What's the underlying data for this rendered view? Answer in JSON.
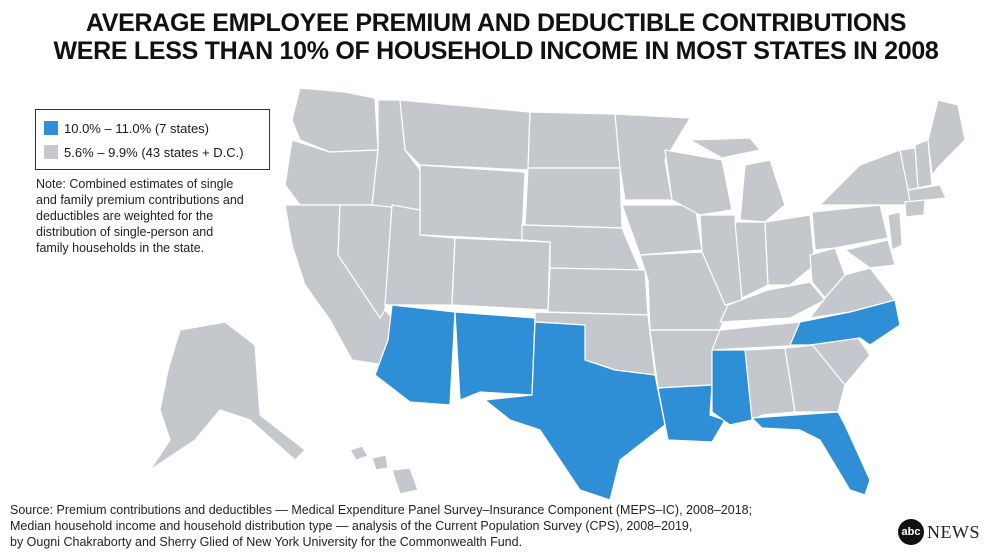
{
  "title": {
    "line1": "AVERAGE EMPLOYEE PREMIUM AND DEDUCTIBLE CONTRIBUTIONS",
    "line2": "WERE LESS THAN 10% OF HOUSEHOLD INCOME IN MOST STATES IN 2008"
  },
  "legend": {
    "items": [
      {
        "label": "10.0% – 11.0% (7 states)",
        "color": "#2e8fd6"
      },
      {
        "label": "5.6% – 9.9% (43 states + D.C.)",
        "color": "#c4c8cc"
      }
    ]
  },
  "note": "Note: Combined estimates of single and family premium contributions and deductibles are weighted for the distribution of single-person and family households in the state.",
  "highlighted_states": [
    "Arizona",
    "New Mexico",
    "Texas",
    "Louisiana",
    "Mississippi",
    "Florida",
    "North Carolina"
  ],
  "colors": {
    "highlight": "#2e8fd6",
    "base": "#c4c8cc",
    "border": "#ffffff"
  },
  "source": {
    "line1": "Source: Premium contributions and deductibles — Medical Expenditure Panel Survey–Insurance Component (MEPS–IC), 2008–2018;",
    "line2": "Median household income and household distribution type — analysis of the Current Population Survey (CPS), 2008–2019,",
    "line3": "by Ougni Chakraborty and Sherry Glied of New York University for the Commonwealth Fund."
  },
  "logo": {
    "mark": "abc",
    "text": "NEWS"
  }
}
